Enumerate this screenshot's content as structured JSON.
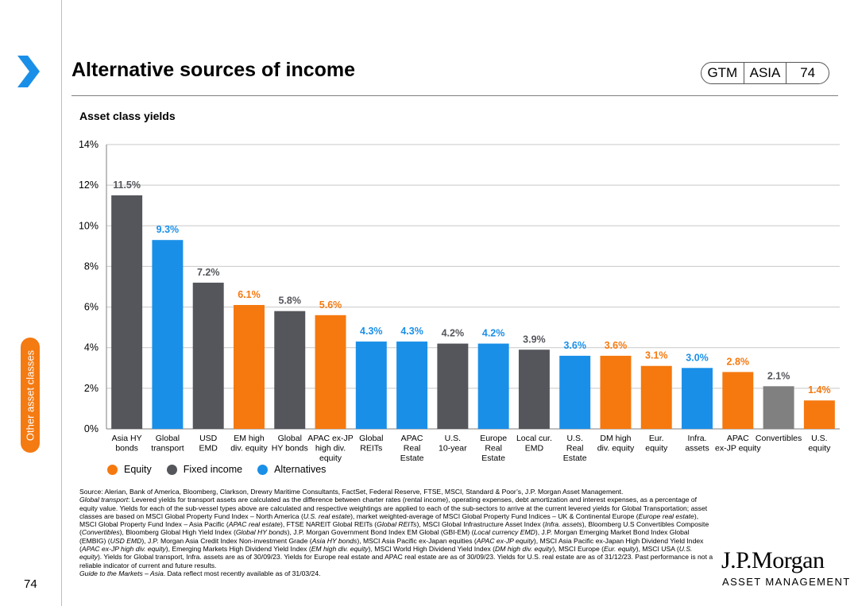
{
  "header": {
    "title": "Alternative sources of income",
    "badge": {
      "gtm": "GTM",
      "region": "ASIA",
      "page": "74"
    }
  },
  "side_tab": {
    "label": "Other asset classes"
  },
  "footer": {
    "page_number": "74",
    "source": "Source: Alerian, Bank of America, Bloomberg, Clarkson, Drewry Maritime Consultants, FactSet, Federal Reserve, FTSE, MSCI, Standard & Poor’s, J.P. Morgan Asset Management.",
    "notes": [
      {
        "text": "Global transport",
        "italic": true
      },
      {
        "text": ": Levered yields for transport assets are calculated as the difference between charter rates (rental income), operating expenses, debt amortization and interest expenses, as a percentage of equity value. Yields for each of the sub-vessel types above are calculated and respective weightings are applied to each of the sub-sectors to arrive at the current levered yields for Global Transportation; asset classes are based on MSCI Global Property Fund Index – North America (",
        "italic": false
      },
      {
        "text": "U.S. real estate",
        "italic": true
      },
      {
        "text": "), market weighted-average of MSCI Global Property Fund Indices – UK & Continental Europe (",
        "italic": false
      },
      {
        "text": "Europe real estate",
        "italic": true
      },
      {
        "text": "), MSCI Global Property Fund Index – Asia Pacific (",
        "italic": false
      },
      {
        "text": "APAC real estate",
        "italic": true
      },
      {
        "text": "), FTSE NAREIT Global REITs (",
        "italic": false
      },
      {
        "text": "Global REITs",
        "italic": true
      },
      {
        "text": "), MSCI Global Infrastructure Asset Index (",
        "italic": false
      },
      {
        "text": "Infra. assets",
        "italic": true
      },
      {
        "text": "), Bloomberg U.S Convertibles Composite (",
        "italic": false
      },
      {
        "text": "Convertibles",
        "italic": true
      },
      {
        "text": "), Bloomberg Global High Yield Index (",
        "italic": false
      },
      {
        "text": "Global HY bonds",
        "italic": true
      },
      {
        "text": "), J.P. Morgan Government Bond Index EM Global (GBI-EM) (",
        "italic": false
      },
      {
        "text": "Local currency EMD",
        "italic": true
      },
      {
        "text": "), J.P. Morgan Emerging Market Bond Index Global (EMBIG) (",
        "italic": false
      },
      {
        "text": "USD EMD",
        "italic": true
      },
      {
        "text": "), J.P. Morgan Asia Credit Index Non-investment Grade (",
        "italic": false
      },
      {
        "text": "Asia HY bonds",
        "italic": true
      },
      {
        "text": "), MSCI Asia Pacific ex-Japan equities (",
        "italic": false
      },
      {
        "text": "APAC ex-JP equity",
        "italic": true
      },
      {
        "text": "), MSCI Asia Pacific ex-Japan High Dividend Yield Index (",
        "italic": false
      },
      {
        "text": "APAC ex-JP high div. equity",
        "italic": true
      },
      {
        "text": "), Emerging Markets High Dividend Yield Index (",
        "italic": false
      },
      {
        "text": "EM high div. equity",
        "italic": true
      },
      {
        "text": "), MSCI World High Dividend Yield Index (",
        "italic": false
      },
      {
        "text": "DM high div. equity",
        "italic": true
      },
      {
        "text": "), MSCI Europe (",
        "italic": false
      },
      {
        "text": "Eur. equity",
        "italic": true
      },
      {
        "text": "), MSCI USA (",
        "italic": false
      },
      {
        "text": "U.S. equity",
        "italic": true
      },
      {
        "text": "). Yields for Global transport, Infra. assets are as of 30/09/23. Yields for Europe real estate and APAC real estate are as of 30/09/23. Yields for U.S. real estate are as of 31/12/23. Past performance is not a reliable indicator of current and future results.",
        "italic": false
      }
    ],
    "guide": [
      {
        "text": "Guide to the Markets – Asia",
        "italic": true
      },
      {
        "text": ". Data reflect most recently available as of 31/03/24.",
        "italic": false
      }
    ]
  },
  "logo": {
    "name": "J.P.Morgan",
    "sub": "ASSET MANAGEMENT"
  },
  "chart_data": {
    "type": "bar",
    "title": "Asset class yields",
    "xlabel": "",
    "ylabel": "",
    "ylim": [
      0,
      14
    ],
    "yticks": [
      0,
      2,
      4,
      6,
      8,
      10,
      12,
      14
    ],
    "ytick_format": "%",
    "categories": [
      [
        "Asia HY",
        "bonds"
      ],
      [
        "Global",
        "transport"
      ],
      [
        "USD",
        "EMD"
      ],
      [
        "EM high",
        "div. equity"
      ],
      [
        "Global",
        "HY bonds"
      ],
      [
        "APAC ex-JP",
        "high div.",
        "equity"
      ],
      [
        "Global",
        "REITs"
      ],
      [
        "APAC",
        "Real",
        "Estate"
      ],
      [
        "U.S.",
        "10-year"
      ],
      [
        "Europe",
        "Real",
        "Estate"
      ],
      [
        "Local cur.",
        "EMD"
      ],
      [
        "U.S.",
        "Real",
        "Estate"
      ],
      [
        "DM high",
        "div. equity"
      ],
      [
        "Eur.",
        "equity"
      ],
      [
        "Infra.",
        "assets"
      ],
      [
        "APAC",
        "ex-JP equity"
      ],
      [
        "Convertibles"
      ],
      [
        "U.S.",
        "equity"
      ]
    ],
    "values": [
      11.5,
      9.3,
      7.2,
      6.1,
      5.8,
      5.6,
      4.3,
      4.3,
      4.2,
      4.2,
      3.9,
      3.6,
      3.6,
      3.1,
      3.0,
      2.8,
      2.1,
      1.4
    ],
    "labels": [
      "11.5%",
      "9.3%",
      "7.2%",
      "6.1%",
      "5.8%",
      "5.6%",
      "4.3%",
      "4.3%",
      "4.2%",
      "4.2%",
      "3.9%",
      "3.6%",
      "3.6%",
      "3.1%",
      "3.0%",
      "2.8%",
      "2.1%",
      "1.4%"
    ],
    "groups": [
      "fixed",
      "alt",
      "fixed",
      "equity",
      "fixed",
      "equity",
      "alt",
      "alt",
      "fixed",
      "alt",
      "fixed",
      "alt",
      "equity",
      "equity",
      "alt",
      "equity",
      "convert",
      "equity"
    ],
    "group_colors": {
      "equity": "#f5790f",
      "fixed": "#54565b",
      "alt": "#1a8fe8",
      "convert": "#808080"
    },
    "label_colors": {
      "equity": "#f5790f",
      "fixed": "#54565b",
      "alt": "#1a8fe8",
      "convert": "#54565b"
    },
    "legend": [
      {
        "name": "Equity",
        "color": "#f5790f"
      },
      {
        "name": "Fixed income",
        "color": "#54565b"
      },
      {
        "name": "Alternatives",
        "color": "#1a8fe8"
      }
    ],
    "legend_position": "bottom-left",
    "grid": true
  },
  "colors": {
    "accent": "#f47a12",
    "chevron": "#1a8fe8"
  }
}
